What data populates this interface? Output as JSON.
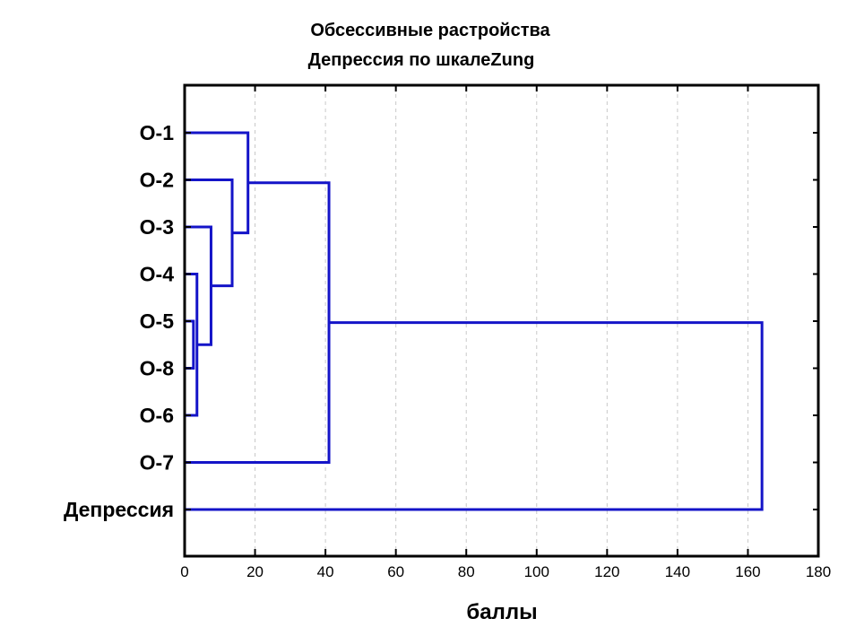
{
  "chart_data": {
    "type": "dendrogram",
    "title": "Обсессивные растройства",
    "subtitle": "Депрессия по шкалеZung",
    "xlabel": "баллы",
    "xlim": [
      0,
      180
    ],
    "xticks": [
      0,
      20,
      40,
      60,
      80,
      100,
      120,
      140,
      160,
      180
    ],
    "grid": "vertical-dashed",
    "line_color": "#1414c8",
    "leaves": [
      "O-1",
      "O-2",
      "O-3",
      "O-4",
      "O-5",
      "O-8",
      "O-6",
      "O-7",
      "Депрессия"
    ],
    "merges": [
      {
        "a": "O-5",
        "b": "O-8",
        "height": 2.5
      },
      {
        "a": "O-4",
        "b": "O-6",
        "height": 3.5
      },
      {
        "a": "O-3",
        "b": "(O-5,O-8)",
        "height": 7.5
      },
      {
        "a": "O-2",
        "b": "(O-3,O-5,O-8)",
        "height": 13.5
      },
      {
        "a": "O-1",
        "b": "(O-2,O-3,O-5,O-8)",
        "height": 18
      },
      {
        "a": "(O-1..O-8)",
        "b": "O-7",
        "height": 41
      },
      {
        "a": "(O-1..O-7)",
        "b": "Депрессия",
        "height": 164
      }
    ]
  }
}
